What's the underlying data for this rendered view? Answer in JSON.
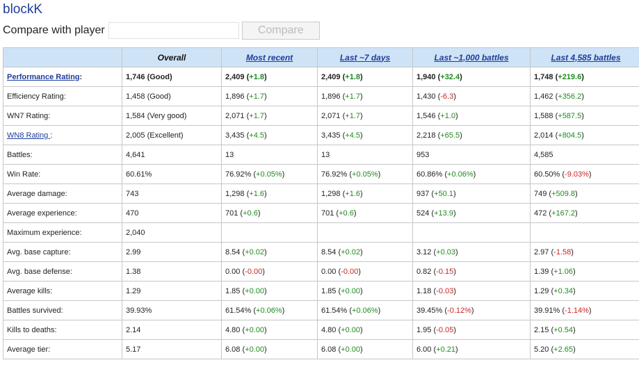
{
  "player": {
    "name": "blockK"
  },
  "compare": {
    "label": "Compare with player",
    "input_value": "",
    "placeholder": "",
    "button_label": "Compare"
  },
  "table": {
    "columns": [
      {
        "label": "Overall",
        "link": false
      },
      {
        "label": "Most recent",
        "link": true
      },
      {
        "label": "Last ~7 days",
        "link": true
      },
      {
        "label": "Last ~1,000 battles",
        "link": true
      },
      {
        "label": "Last 4,585 battles",
        "link": true
      }
    ],
    "rows": [
      {
        "label": "Performance Rating",
        "suffix": ":",
        "link": true,
        "bold": true,
        "cells": [
          {
            "value": "1,746 (Good)",
            "delta": "",
            "sign": ""
          },
          {
            "value": "2,409",
            "delta": "+1.8",
            "sign": "pos"
          },
          {
            "value": "2,409",
            "delta": "+1.8",
            "sign": "pos"
          },
          {
            "value": "1,940",
            "delta": "+32.4",
            "sign": "pos"
          },
          {
            "value": "1,748",
            "delta": "+219.6",
            "sign": "pos"
          }
        ]
      },
      {
        "label": "Efficiency Rating:",
        "suffix": "",
        "link": false,
        "bold": false,
        "cells": [
          {
            "value": "1,458 (Good)",
            "delta": "",
            "sign": ""
          },
          {
            "value": "1,896",
            "delta": "+1.7",
            "sign": "pos"
          },
          {
            "value": "1,896",
            "delta": "+1.7",
            "sign": "pos"
          },
          {
            "value": "1,430",
            "delta": "-6.3",
            "sign": "neg"
          },
          {
            "value": "1,462",
            "delta": "+356.2",
            "sign": "pos"
          }
        ]
      },
      {
        "label": "WN7 Rating:",
        "suffix": "",
        "link": false,
        "bold": false,
        "cells": [
          {
            "value": "1,584 (Very good)",
            "delta": "",
            "sign": ""
          },
          {
            "value": "2,071",
            "delta": "+1.7",
            "sign": "pos"
          },
          {
            "value": "2,071",
            "delta": "+1.7",
            "sign": "pos"
          },
          {
            "value": "1,546",
            "delta": "+1.0",
            "sign": "pos"
          },
          {
            "value": "1,588",
            "delta": "+587.5",
            "sign": "pos"
          }
        ]
      },
      {
        "label": "WN8 Rating ",
        "suffix": ":",
        "link": true,
        "bold": false,
        "cells": [
          {
            "value": "2,005 (Excellent)",
            "delta": "",
            "sign": ""
          },
          {
            "value": "3,435",
            "delta": "+4.5",
            "sign": "pos"
          },
          {
            "value": "3,435",
            "delta": "+4.5",
            "sign": "pos"
          },
          {
            "value": "2,218",
            "delta": "+65.5",
            "sign": "pos"
          },
          {
            "value": "2,014",
            "delta": "+804.5",
            "sign": "pos"
          }
        ]
      },
      {
        "label": "Battles:",
        "suffix": "",
        "link": false,
        "bold": false,
        "cells": [
          {
            "value": "4,641",
            "delta": "",
            "sign": ""
          },
          {
            "value": "13",
            "delta": "",
            "sign": ""
          },
          {
            "value": "13",
            "delta": "",
            "sign": ""
          },
          {
            "value": "953",
            "delta": "",
            "sign": ""
          },
          {
            "value": "4,585",
            "delta": "",
            "sign": ""
          }
        ]
      },
      {
        "label": "Win Rate:",
        "suffix": "",
        "link": false,
        "bold": false,
        "cells": [
          {
            "value": "60.61%",
            "delta": "",
            "sign": ""
          },
          {
            "value": "76.92%",
            "delta": "+0.05%",
            "sign": "pos"
          },
          {
            "value": "76.92%",
            "delta": "+0.05%",
            "sign": "pos"
          },
          {
            "value": "60.86%",
            "delta": "+0.06%",
            "sign": "pos"
          },
          {
            "value": "60.50%",
            "delta": "-9.03%",
            "sign": "neg"
          }
        ]
      },
      {
        "label": "Average damage:",
        "suffix": "",
        "link": false,
        "bold": false,
        "cells": [
          {
            "value": "743",
            "delta": "",
            "sign": ""
          },
          {
            "value": "1,298",
            "delta": "+1.6",
            "sign": "pos"
          },
          {
            "value": "1,298",
            "delta": "+1.6",
            "sign": "pos"
          },
          {
            "value": "937",
            "delta": "+50.1",
            "sign": "pos"
          },
          {
            "value": "749",
            "delta": "+509.8",
            "sign": "pos"
          }
        ]
      },
      {
        "label": "Average experience:",
        "suffix": "",
        "link": false,
        "bold": false,
        "cells": [
          {
            "value": "470",
            "delta": "",
            "sign": ""
          },
          {
            "value": "701",
            "delta": "+0.6",
            "sign": "pos"
          },
          {
            "value": "701",
            "delta": "+0.6",
            "sign": "pos"
          },
          {
            "value": "524",
            "delta": "+13.9",
            "sign": "pos"
          },
          {
            "value": "472",
            "delta": "+167.2",
            "sign": "pos"
          }
        ]
      },
      {
        "label": "Maximum experience:",
        "suffix": "",
        "link": false,
        "bold": false,
        "cells": [
          {
            "value": "2,040",
            "delta": "",
            "sign": ""
          },
          {
            "value": "",
            "delta": "",
            "sign": ""
          },
          {
            "value": "",
            "delta": "",
            "sign": ""
          },
          {
            "value": "",
            "delta": "",
            "sign": ""
          },
          {
            "value": "",
            "delta": "",
            "sign": ""
          }
        ]
      },
      {
        "label": "Avg. base capture:",
        "suffix": "",
        "link": false,
        "bold": false,
        "cells": [
          {
            "value": "2.99",
            "delta": "",
            "sign": ""
          },
          {
            "value": "8.54",
            "delta": "+0.02",
            "sign": "pos"
          },
          {
            "value": "8.54",
            "delta": "+0.02",
            "sign": "pos"
          },
          {
            "value": "3.12",
            "delta": "+0.03",
            "sign": "pos"
          },
          {
            "value": "2.97",
            "delta": "-1.58",
            "sign": "neg"
          }
        ]
      },
      {
        "label": "Avg. base defense:",
        "suffix": "",
        "link": false,
        "bold": false,
        "cells": [
          {
            "value": "1.38",
            "delta": "",
            "sign": ""
          },
          {
            "value": "0.00",
            "delta": "-0.00",
            "sign": "neg"
          },
          {
            "value": "0.00",
            "delta": "-0.00",
            "sign": "neg"
          },
          {
            "value": "0.82",
            "delta": "-0.15",
            "sign": "neg"
          },
          {
            "value": "1.39",
            "delta": "+1.06",
            "sign": "pos"
          }
        ]
      },
      {
        "label": "Average kills:",
        "suffix": "",
        "link": false,
        "bold": false,
        "cells": [
          {
            "value": "1.29",
            "delta": "",
            "sign": ""
          },
          {
            "value": "1.85",
            "delta": "+0.00",
            "sign": "pos"
          },
          {
            "value": "1.85",
            "delta": "+0.00",
            "sign": "pos"
          },
          {
            "value": "1.18",
            "delta": "-0.03",
            "sign": "neg"
          },
          {
            "value": "1.29",
            "delta": "+0.34",
            "sign": "pos"
          }
        ]
      },
      {
        "label": "Battles survived:",
        "suffix": "",
        "link": false,
        "bold": false,
        "cells": [
          {
            "value": "39.93%",
            "delta": "",
            "sign": ""
          },
          {
            "value": "61.54%",
            "delta": "+0.06%",
            "sign": "pos"
          },
          {
            "value": "61.54%",
            "delta": "+0.06%",
            "sign": "pos"
          },
          {
            "value": "39.45%",
            "delta": "-0.12%",
            "sign": "neg"
          },
          {
            "value": "39.91%",
            "delta": "-1.14%",
            "sign": "neg"
          }
        ]
      },
      {
        "label": "Kills to deaths:",
        "suffix": "",
        "link": false,
        "bold": false,
        "cells": [
          {
            "value": "2.14",
            "delta": "",
            "sign": ""
          },
          {
            "value": "4.80",
            "delta": "+0.00",
            "sign": "pos"
          },
          {
            "value": "4.80",
            "delta": "+0.00",
            "sign": "pos"
          },
          {
            "value": "1.95",
            "delta": "-0.05",
            "sign": "neg"
          },
          {
            "value": "2.15",
            "delta": "+0.54",
            "sign": "pos"
          }
        ]
      },
      {
        "label": "Average tier:",
        "suffix": "",
        "link": false,
        "bold": false,
        "cells": [
          {
            "value": "5.17",
            "delta": "",
            "sign": ""
          },
          {
            "value": "6.08",
            "delta": "+0.00",
            "sign": "pos"
          },
          {
            "value": "6.08",
            "delta": "+0.00",
            "sign": "pos"
          },
          {
            "value": "6.00",
            "delta": "+0.21",
            "sign": "pos"
          },
          {
            "value": "5.20",
            "delta": "+2.65",
            "sign": "pos"
          }
        ]
      }
    ]
  },
  "colors": {
    "header_bg": "#cfe3f6",
    "link": "#1f3d9b",
    "positive": "#1f8a1f",
    "negative": "#cc2222",
    "border": "#c6c6c6"
  }
}
